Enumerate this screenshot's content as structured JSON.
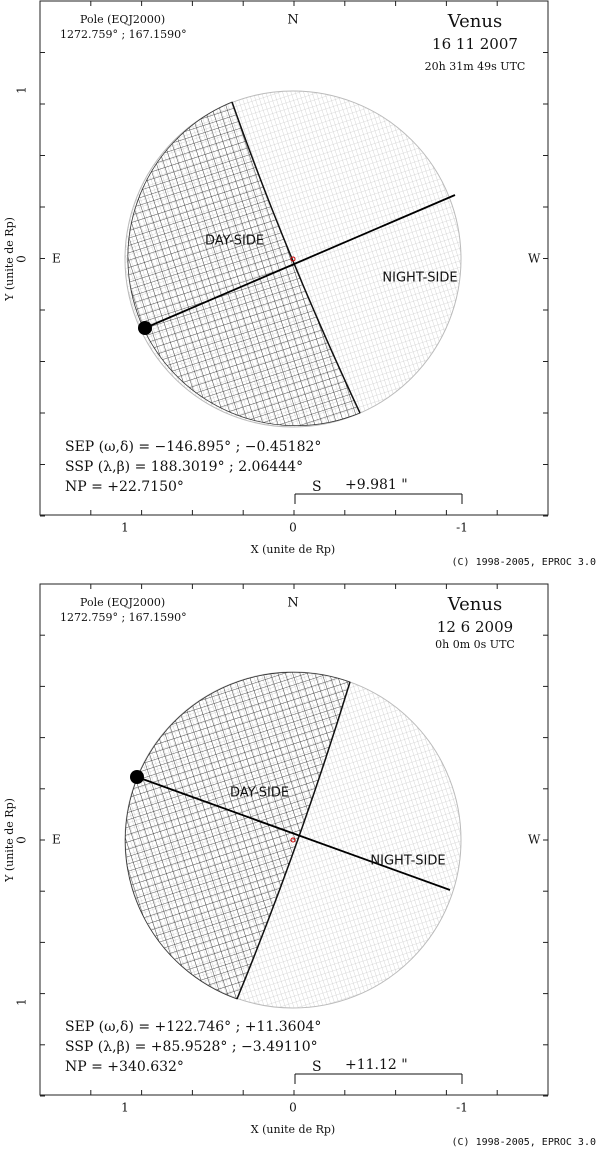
{
  "panels": [
    {
      "pole_label": "Pole (EQJ2000)",
      "pole_values": "1272.759° ; 167.1590°",
      "planet": "Venus",
      "date": "16 11 2007",
      "time": "20h 31m 49s UTC",
      "north": "N",
      "east": "E",
      "west": "W",
      "day_label": "DAY-SIDE",
      "night_label": "NIGHT-SIDE",
      "sep": "SEP (ω,δ) = −146.895° ; −0.45182°",
      "ssp": "SSP (λ,β) = 188.3019° ; 2.06444°",
      "np": "NP = +22.7150°",
      "scale_label": "S",
      "scale_value": "+9.981 \"",
      "x_axis_label": "X (unite de Rp)",
      "y_axis_label": "Y (unite de Rp)",
      "x_ticks": [
        "1",
        "0",
        "-1"
      ],
      "y_ticks": [
        "1",
        "0"
      ],
      "copyright": "(C) 1998-2005, EPROC 3.0"
    },
    {
      "pole_label": "Pole (EQJ2000)",
      "pole_values": "1272.759° ; 167.1590°",
      "planet": "Venus",
      "date": "12 6 2009",
      "time": "0h 0m 0s UTC",
      "north": "N",
      "east": "E",
      "west": "W",
      "day_label": "DAY-SIDE",
      "night_label": "NIGHT-SIDE",
      "sep": "SEP (ω,δ) = +122.746° ; +11.3604°",
      "ssp": "SSP (λ,β) = +85.9528° ; −3.49110°",
      "np": "NP = +340.632°",
      "scale_label": "S",
      "scale_value": "+11.12 \"",
      "x_axis_label": "X (unite de Rp)",
      "y_axis_label": "Y (unite de Rp)",
      "x_ticks": [
        "1",
        "0",
        "-1"
      ],
      "y_ticks": [
        "0",
        "1"
      ],
      "copyright": "(C) 1998-2005, EPROC 3.0"
    }
  ]
}
